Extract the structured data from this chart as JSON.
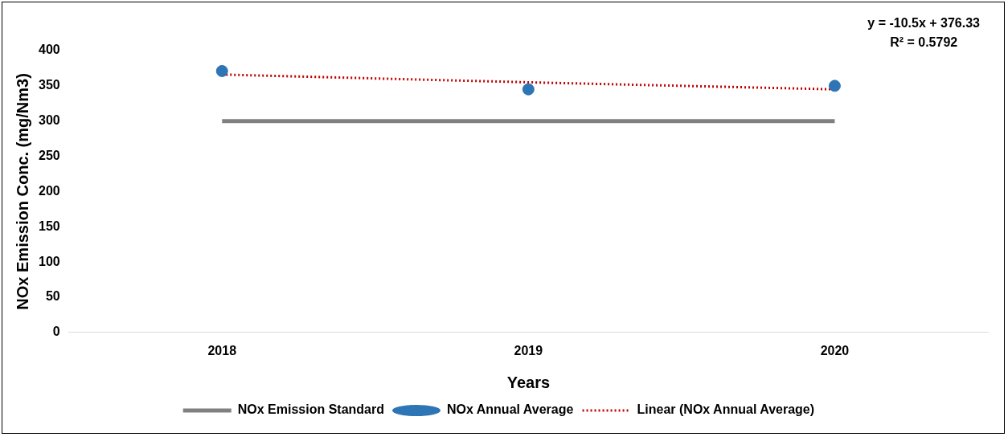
{
  "chart_data": {
    "type": "line",
    "xlabel": "Years",
    "ylabel": "NOx Emission Conc. (mg/Nm3)",
    "categories": [
      "2018",
      "2019",
      "2020"
    ],
    "ylim": [
      0,
      400
    ],
    "yticks": [
      0,
      50,
      100,
      150,
      200,
      250,
      300,
      350,
      400
    ],
    "grid": false,
    "legend": "bottom",
    "annotations": [
      "y = -10.5x + 376.33",
      "R² = 0.5792"
    ],
    "series": [
      {
        "name": "NOx Emission Standard",
        "color": "#808080",
        "line_style": "solid",
        "marker": "none",
        "values": [
          300,
          300,
          300
        ]
      },
      {
        "name": "NOx Annual Average",
        "type": "scatter",
        "color": "#2e75b6",
        "marker": "circle",
        "values": [
          371,
          345,
          350
        ]
      },
      {
        "name": "Linear (NOx Annual Average)",
        "type": "line",
        "color": "#c00000",
        "line_style": "dotted",
        "marker": "none",
        "values": [
          366,
          355,
          345
        ]
      }
    ]
  }
}
